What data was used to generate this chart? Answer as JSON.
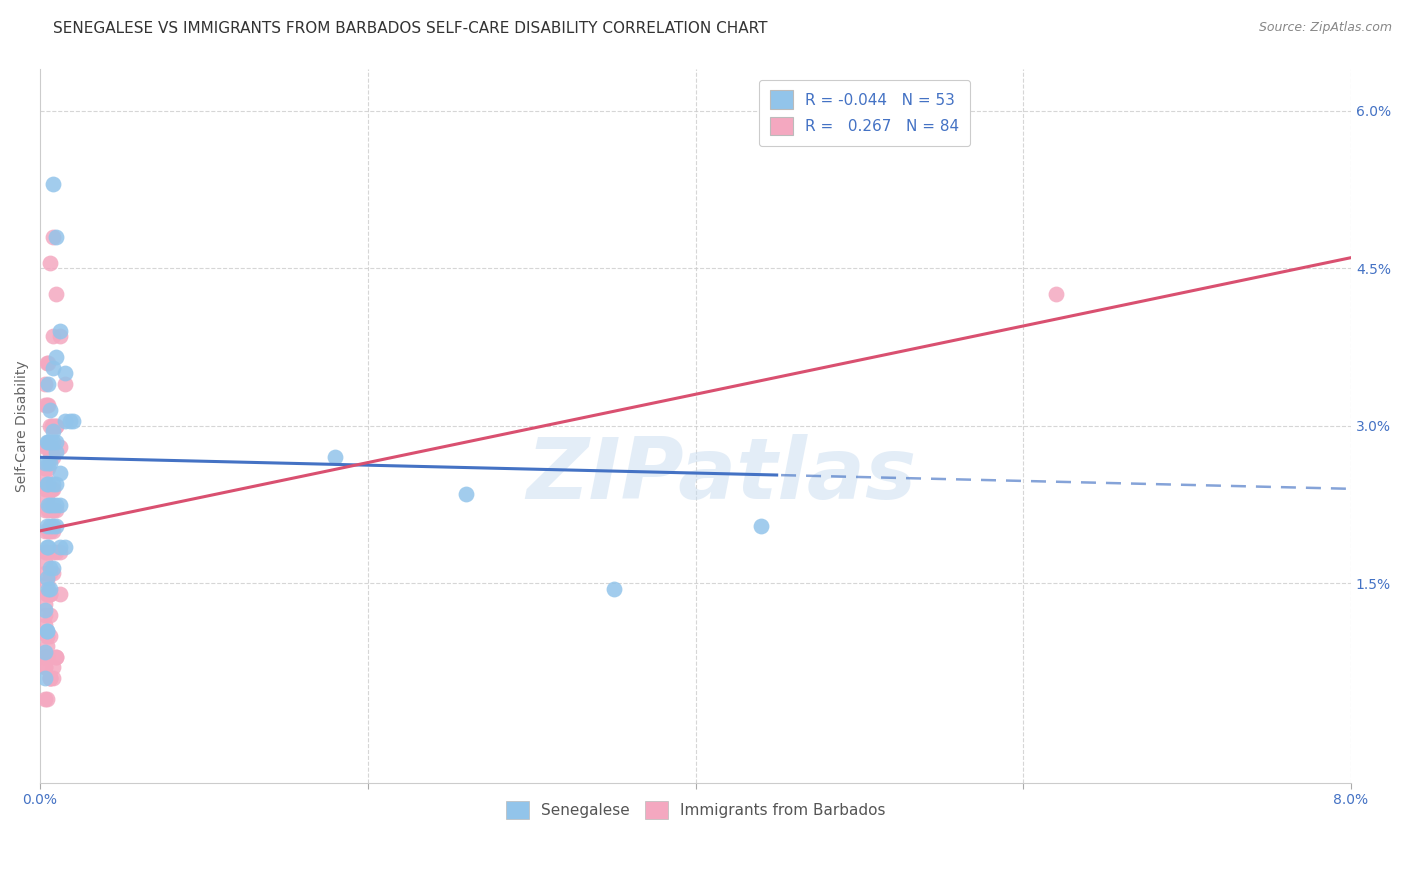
{
  "title": "SENEGALESE VS IMMIGRANTS FROM BARBADOS SELF-CARE DISABILITY CORRELATION CHART",
  "source": "Source: ZipAtlas.com",
  "ylabel": "Self-Care Disability",
  "xlim": [
    0.0,
    0.08
  ],
  "ylim": [
    -0.004,
    0.064
  ],
  "blue_color": "#92C4EA",
  "pink_color": "#F4A8C0",
  "blue_line_color": "#4472C4",
  "pink_line_color": "#D95070",
  "background_color": "#FFFFFF",
  "grid_color": "#CCCCCC",
  "legend_R1": "-0.044",
  "legend_N1": "53",
  "legend_R2": "0.267",
  "legend_N2": "84",
  "blue_label": "Senegalese",
  "pink_label": "Immigrants from Barbados",
  "watermark": "ZIPatlas",
  "title_fontsize": 11,
  "axis_label_fontsize": 10,
  "tick_fontsize": 10,
  "legend_fontsize": 11,
  "source_fontsize": 9,
  "yticks_right": [
    0.015,
    0.03,
    0.045,
    0.06
  ],
  "ytick_labels_right": [
    "1.5%",
    "3.0%",
    "4.5%",
    "6.0%"
  ],
  "blue_scatter_x": [
    0.0008,
    0.001,
    0.0012,
    0.0015,
    0.0008,
    0.001,
    0.0005,
    0.0006,
    0.0008,
    0.001,
    0.0012,
    0.0015,
    0.0018,
    0.002,
    0.0008,
    0.001,
    0.0005,
    0.0006,
    0.0008,
    0.001,
    0.0005,
    0.0006,
    0.0008,
    0.001,
    0.0012,
    0.0004,
    0.0006,
    0.0008,
    0.001,
    0.0012,
    0.0015,
    0.0004,
    0.0005,
    0.0006,
    0.0008,
    0.0004,
    0.0005,
    0.0006,
    0.0003,
    0.0004,
    0.0003,
    0.0004,
    0.0005,
    0.0006,
    0.0003,
    0.0004,
    0.0005,
    0.018,
    0.026,
    0.035,
    0.044,
    0.0003,
    0.0004
  ],
  "blue_scatter_y": [
    0.053,
    0.048,
    0.039,
    0.035,
    0.0355,
    0.0365,
    0.034,
    0.0315,
    0.0295,
    0.0275,
    0.0255,
    0.0305,
    0.0305,
    0.0305,
    0.0285,
    0.0285,
    0.0265,
    0.0265,
    0.0245,
    0.0245,
    0.0225,
    0.0225,
    0.0225,
    0.0225,
    0.0225,
    0.0205,
    0.0205,
    0.0205,
    0.0205,
    0.0185,
    0.0185,
    0.0185,
    0.0185,
    0.0165,
    0.0165,
    0.0155,
    0.0145,
    0.0145,
    0.0125,
    0.0105,
    0.0085,
    0.0285,
    0.0285,
    0.0285,
    0.0265,
    0.0245,
    0.0245,
    0.027,
    0.0235,
    0.0145,
    0.0205,
    0.006,
    0.0105
  ],
  "pink_scatter_x": [
    0.0008,
    0.001,
    0.0006,
    0.0012,
    0.0005,
    0.0004,
    0.0003,
    0.0005,
    0.0007,
    0.0008,
    0.001,
    0.0012,
    0.0015,
    0.0005,
    0.0007,
    0.0003,
    0.0005,
    0.0007,
    0.0008,
    0.0003,
    0.0005,
    0.0007,
    0.0008,
    0.001,
    0.0003,
    0.0005,
    0.0006,
    0.0008,
    0.001,
    0.0012,
    0.0003,
    0.0004,
    0.0006,
    0.0008,
    0.0003,
    0.0004,
    0.0006,
    0.0003,
    0.0004,
    0.0003,
    0.0003,
    0.0004,
    0.0006,
    0.0003,
    0.0003,
    0.0004,
    0.0006,
    0.0008,
    0.0003,
    0.0004,
    0.0006,
    0.0008,
    0.001,
    0.0003,
    0.0004,
    0.0006,
    0.0008,
    0.0003,
    0.0004,
    0.0003,
    0.0003,
    0.0004,
    0.0006,
    0.0003,
    0.0003,
    0.0008,
    0.0004,
    0.0004,
    0.0006,
    0.0006,
    0.0008,
    0.001,
    0.001,
    0.0006,
    0.0006,
    0.0012,
    0.0006,
    0.062,
    0.0003,
    0.0004,
    0.0006,
    0.0008,
    0.0003,
    0.0004
  ],
  "pink_scatter_y": [
    0.048,
    0.0425,
    0.0455,
    0.0385,
    0.036,
    0.036,
    0.034,
    0.032,
    0.03,
    0.03,
    0.03,
    0.028,
    0.034,
    0.028,
    0.028,
    0.026,
    0.026,
    0.024,
    0.024,
    0.022,
    0.022,
    0.022,
    0.022,
    0.022,
    0.02,
    0.02,
    0.02,
    0.02,
    0.018,
    0.018,
    0.018,
    0.018,
    0.016,
    0.016,
    0.016,
    0.014,
    0.014,
    0.012,
    0.01,
    0.008,
    0.028,
    0.028,
    0.028,
    0.026,
    0.024,
    0.024,
    0.024,
    0.022,
    0.032,
    0.032,
    0.03,
    0.027,
    0.03,
    0.025,
    0.023,
    0.02,
    0.018,
    0.017,
    0.015,
    0.013,
    0.011,
    0.009,
    0.027,
    0.007,
    0.007,
    0.0385,
    0.014,
    0.01,
    0.006,
    0.006,
    0.007,
    0.008,
    0.008,
    0.01,
    0.012,
    0.014,
    0.014,
    0.0425,
    0.008,
    0.008,
    0.006,
    0.006,
    0.004,
    0.004
  ]
}
